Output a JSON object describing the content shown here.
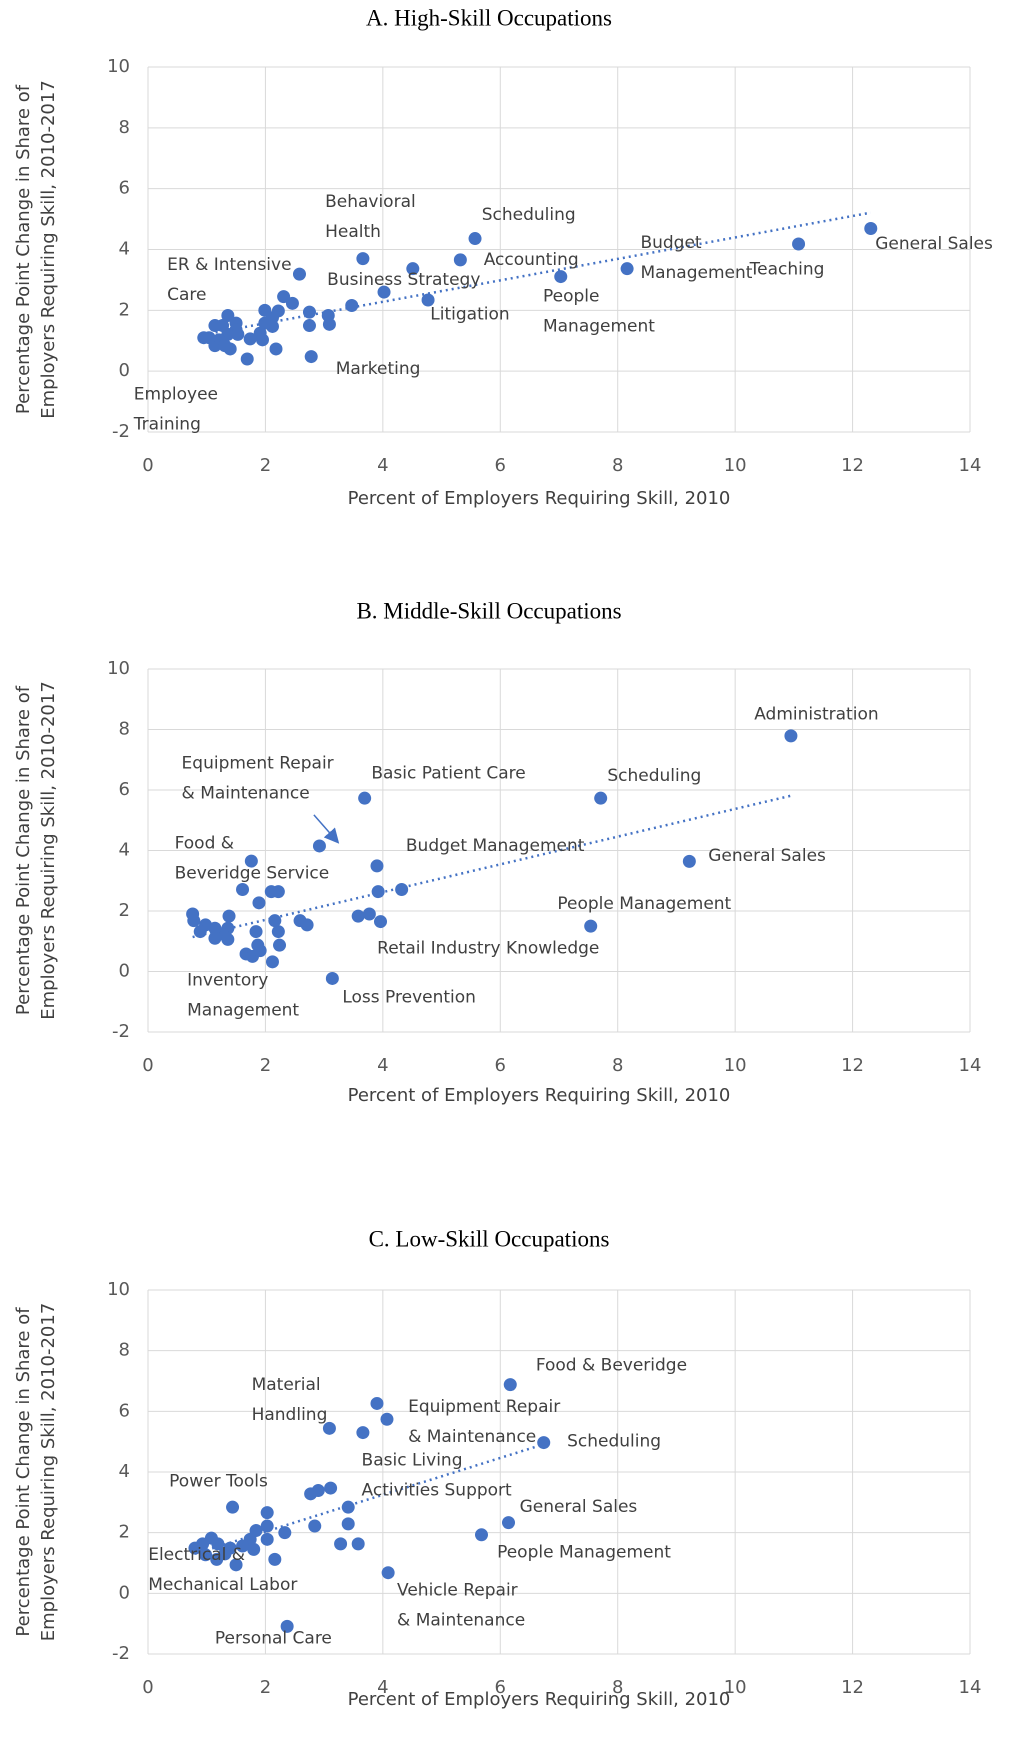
{
  "chart_data": [
    {
      "type": "scatter",
      "title": "A.  High-Skill Occupations",
      "xlabel": "Percent of Employers Requiring Skill, 2010",
      "ylabel": [
        "Percentage Point Change in Share of",
        "Employers Requiring Skill, 2010-2017"
      ],
      "xlim": [
        0,
        14
      ],
      "ylim": [
        -2,
        10
      ],
      "xticks": [
        0,
        2,
        4,
        6,
        8,
        10,
        12,
        14
      ],
      "yticks": [
        -2,
        0,
        2,
        4,
        6,
        8,
        10
      ],
      "grid": true,
      "color": "#4472c4",
      "trendline": true,
      "x": [
        12.31,
        11.08,
        8.16,
        7.03,
        5.57,
        5.32,
        3.66,
        4.51,
        4.77,
        2.78,
        2.58,
        1.69,
        4.02,
        3.47,
        3.07,
        3.09,
        2.75,
        2.75,
        2.46,
        2.31,
        2.22,
        2.12,
        2.12,
        1.99,
        1.99,
        1.91,
        2.18,
        1.95,
        1.74,
        1.5,
        1.5,
        1.36,
        1.36,
        1.27,
        1.4,
        1.21,
        1.14,
        1.14,
        1.04,
        0.95,
        1.31,
        1.53
      ],
      "y": [
        4.69,
        4.18,
        3.37,
        3.11,
        4.36,
        3.66,
        3.7,
        3.37,
        2.34,
        0.48,
        3.19,
        0.4,
        2.6,
        2.16,
        1.83,
        1.54,
        1.94,
        1.5,
        2.23,
        2.45,
        1.98,
        1.76,
        1.47,
        2.0,
        1.58,
        1.25,
        0.73,
        1.03,
        1.06,
        1.58,
        1.36,
        1.83,
        1.21,
        1.5,
        0.73,
        1.03,
        1.5,
        0.84,
        1.1,
        1.1,
        0.84,
        1.21
      ],
      "point_labels": [
        [
          "General Sales"
        ],
        [
          "Teaching"
        ],
        [
          "Budget",
          "Management"
        ],
        [
          "People",
          "Management"
        ],
        [
          "Scheduling"
        ],
        [
          "Accounting"
        ],
        [
          "Behavioral",
          "Health"
        ],
        [
          "Business Strategy"
        ],
        [
          "Litigation"
        ],
        [
          "Marketing"
        ],
        [
          "ER & Intensive",
          "Care"
        ],
        [
          "Employee",
          "Training"
        ],
        null,
        null,
        null,
        null,
        null,
        null,
        null,
        null,
        null,
        null,
        null,
        null,
        null,
        null,
        null,
        null,
        null,
        null,
        null,
        null,
        null,
        null,
        null,
        null,
        null,
        null,
        null,
        null,
        null,
        null
      ]
    },
    {
      "type": "scatter",
      "title": "B.  Middle-Skill Occupations",
      "xlabel": "Percent of Employers Requiring Skill, 2010",
      "ylabel": [
        "Percentage Point Change in Share of",
        "Employers Requiring Skill, 2010-2017"
      ],
      "xlim": [
        0,
        14
      ],
      "ylim": [
        -2,
        10
      ],
      "xticks": [
        0,
        2,
        4,
        6,
        8,
        10,
        12,
        14
      ],
      "yticks": [
        -2,
        0,
        2,
        4,
        6,
        8,
        10
      ],
      "grid": true,
      "color": "#4472c4",
      "trendline": true,
      "x": [
        10.95,
        7.71,
        9.22,
        7.54,
        3.69,
        2.92,
        1.76,
        3.9,
        3.96,
        3.14,
        1.67,
        4.32,
        1.61,
        1.89,
        2.1,
        2.22,
        3.92,
        3.58,
        3.77,
        2.59,
        2.71,
        2.16,
        2.22,
        2.24,
        2.12,
        1.84,
        1.87,
        1.78,
        1.91,
        1.38,
        1.36,
        1.27,
        1.36,
        1.14,
        0.98,
        0.89,
        0.78,
        0.76,
        1.14
      ],
      "y": [
        7.79,
        5.73,
        3.64,
        1.5,
        5.73,
        4.15,
        3.65,
        3.49,
        1.65,
        -0.23,
        0.58,
        2.71,
        2.71,
        2.27,
        2.64,
        2.64,
        2.64,
        1.83,
        1.9,
        1.68,
        1.54,
        1.68,
        1.32,
        0.87,
        0.32,
        1.32,
        0.87,
        0.5,
        0.69,
        1.83,
        1.43,
        1.24,
        1.06,
        1.43,
        1.54,
        1.32,
        1.68,
        1.9,
        1.1
      ],
      "point_labels": [
        [
          "Administration"
        ],
        [
          "Scheduling"
        ],
        [
          "General Sales"
        ],
        [
          "People Management"
        ],
        [
          "Basic Patient Care"
        ],
        [
          "Equipment Repair",
          "& Maintenance"
        ],
        [
          "Food &",
          "Beveridge Service"
        ],
        [
          "Budget Management"
        ],
        [
          "Retail Industry Knowledge"
        ],
        [
          "Loss Prevention"
        ],
        [
          "Inventory",
          "Management"
        ],
        null,
        null,
        null,
        null,
        null,
        null,
        null,
        null,
        null,
        null,
        null,
        null,
        null,
        null,
        null,
        null,
        null,
        null,
        null,
        null,
        null,
        null,
        null,
        null,
        null,
        null,
        null,
        null
      ]
    },
    {
      "type": "scatter",
      "title": "C.  Low-Skill Occupations",
      "xlabel": "Percent of Employers Requiring Skill, 2010",
      "ylabel": [
        "Percentage Point Change in Share of",
        "Employers Requiring Skill, 2010-2017"
      ],
      "xlim": [
        0,
        14
      ],
      "ylim": [
        -2,
        10
      ],
      "xticks": [
        0,
        2,
        4,
        6,
        8,
        10,
        12,
        14
      ],
      "yticks": [
        -2,
        0,
        2,
        4,
        6,
        8,
        10
      ],
      "grid": true,
      "color": "#4472c4",
      "trendline": true,
      "x": [
        6.17,
        6.74,
        6.14,
        5.68,
        3.9,
        3.09,
        3.41,
        1.44,
        2.37,
        4.09,
        1.5,
        4.07,
        3.66,
        3.41,
        3.11,
        2.9,
        2.77,
        2.84,
        3.28,
        3.58,
        2.03,
        2.03,
        2.03,
        2.33,
        2.16,
        1.84,
        1.74,
        1.61,
        1.4,
        1.19,
        1.08,
        0.93,
        0.8,
        1.17,
        0.98,
        1.31,
        1.8
      ],
      "y": [
        6.88,
        4.97,
        2.33,
        1.93,
        6.26,
        5.44,
        2.84,
        2.84,
        -1.09,
        0.68,
        0.94,
        5.74,
        5.3,
        2.29,
        3.47,
        3.39,
        3.28,
        2.22,
        1.63,
        1.63,
        2.66,
        2.22,
        1.78,
        2.0,
        1.12,
        2.07,
        1.78,
        1.56,
        1.49,
        1.63,
        1.82,
        1.63,
        1.49,
        1.12,
        1.27,
        1.3,
        1.45
      ],
      "point_labels": [
        [
          "Food & Beveridge"
        ],
        [
          "Scheduling"
        ],
        [
          "General Sales"
        ],
        [
          "People Management"
        ],
        [
          "Equipment Repair",
          "& Maintenance"
        ],
        [
          "Material",
          "Handling"
        ],
        [
          "Basic Living",
          "Activities Support"
        ],
        [
          "Power Tools"
        ],
        [
          "Personal Care"
        ],
        [
          "Vehicle Repair",
          "& Maintenance"
        ],
        [
          "Electrical &",
          "Mechanical Labor"
        ],
        null,
        null,
        null,
        null,
        null,
        null,
        null,
        null,
        null,
        null,
        null,
        null,
        null,
        null,
        null,
        null,
        null,
        null,
        null,
        null,
        null,
        null,
        null,
        null,
        null,
        null
      ]
    }
  ]
}
